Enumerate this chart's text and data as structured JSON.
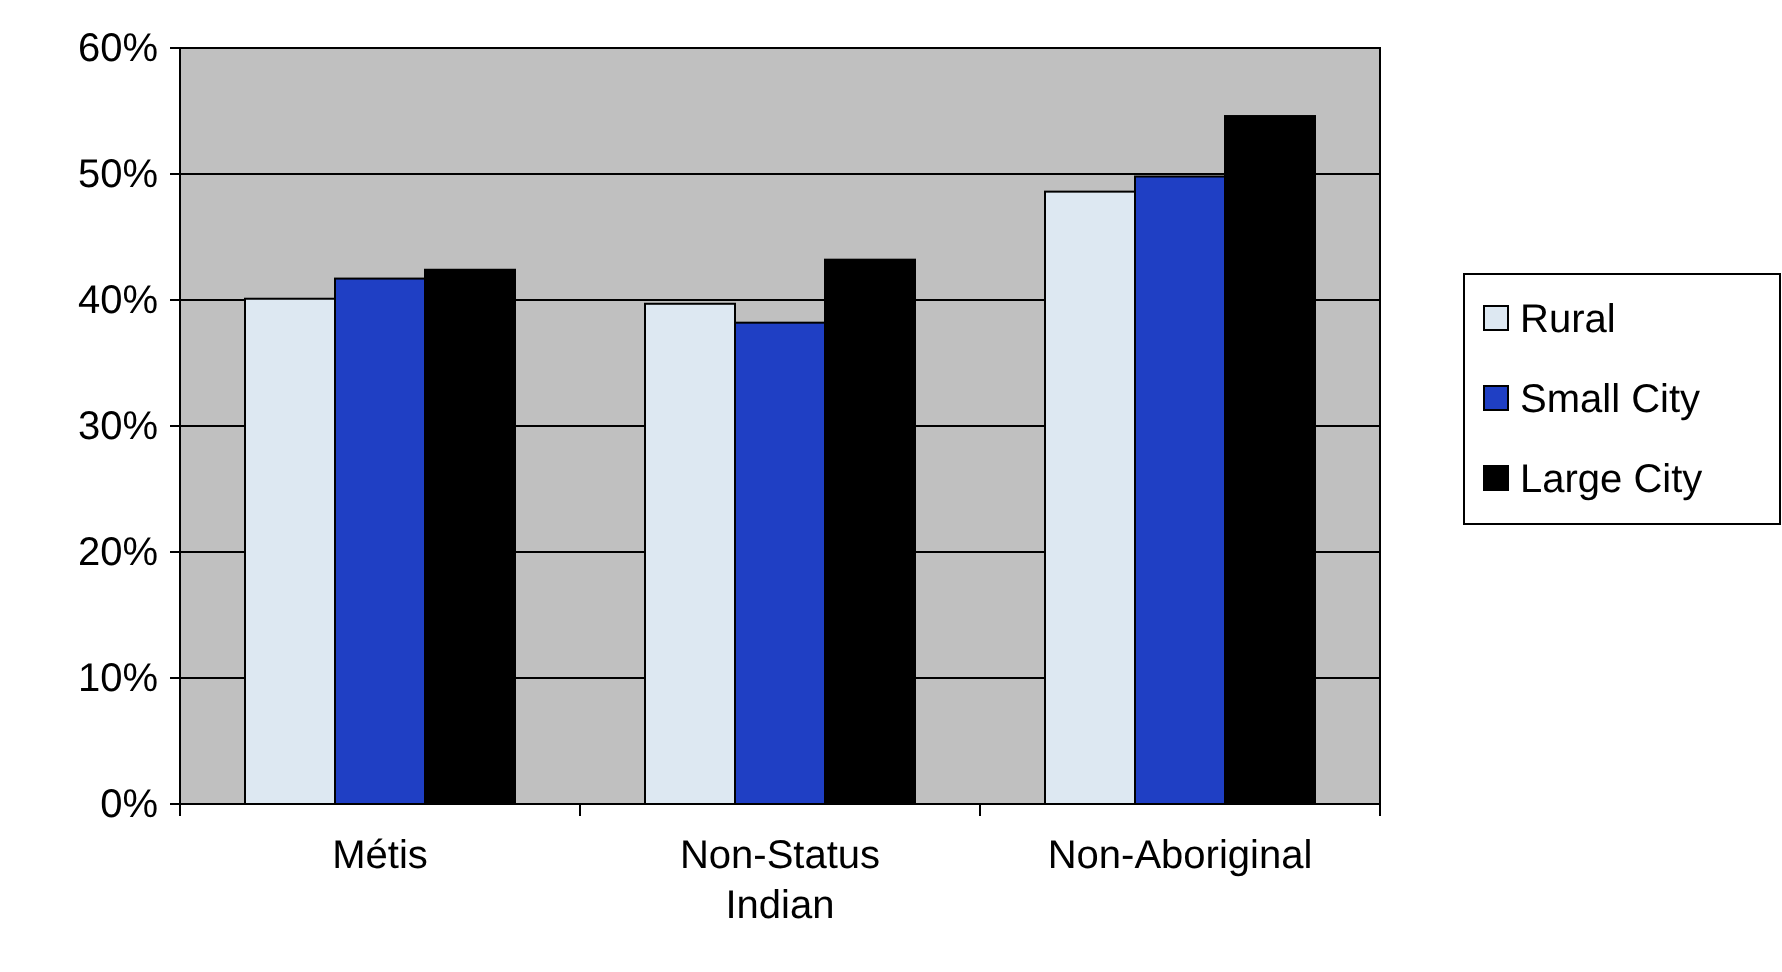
{
  "chart_data": {
    "type": "bar",
    "categories": [
      "Métis",
      "Non-Status Indian",
      "Non-Aboriginal"
    ],
    "series": [
      {
        "name": "Rural",
        "color": "#dde8f2",
        "values": [
          40.1,
          39.7,
          48.6
        ]
      },
      {
        "name": "Small City",
        "color": "#1f3fc4",
        "values": [
          41.7,
          38.2,
          49.8
        ]
      },
      {
        "name": "Large City",
        "color": "#000000",
        "values": [
          42.4,
          43.2,
          54.6
        ]
      }
    ],
    "ylim": [
      0,
      60
    ],
    "yticks": [
      {
        "value": 0,
        "label": "0%"
      },
      {
        "value": 10,
        "label": "10%"
      },
      {
        "value": 20,
        "label": "20%"
      },
      {
        "value": 30,
        "label": "30%"
      },
      {
        "value": 40,
        "label": "40%"
      },
      {
        "value": 50,
        "label": "50%"
      },
      {
        "value": 60,
        "label": "60%"
      }
    ],
    "grid": "y",
    "legend": "right"
  }
}
